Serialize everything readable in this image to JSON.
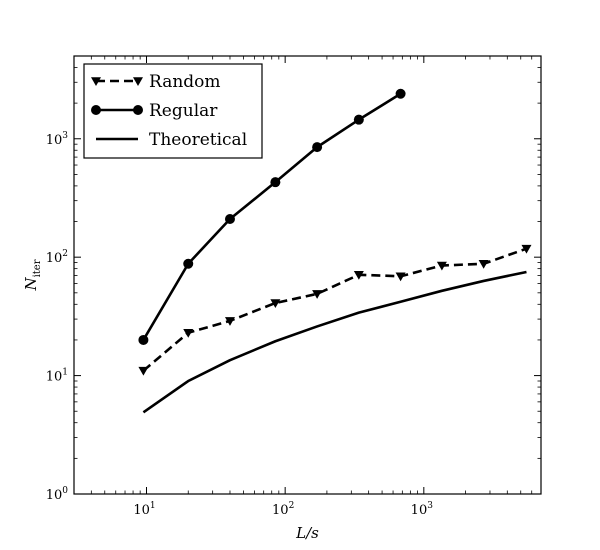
{
  "chart_data": {
    "type": "line",
    "xscale": "log",
    "yscale": "log",
    "xlim": [
      3,
      7000
    ],
    "ylim": [
      1,
      5000
    ],
    "xlabel": "L/s",
    "ylabel_main": "N",
    "ylabel_sub": "iter",
    "grid": false,
    "legend_position": "top-left",
    "x_ticks": [
      {
        "value": 10,
        "base": "10",
        "exp": "1"
      },
      {
        "value": 100,
        "base": "10",
        "exp": "2"
      },
      {
        "value": 1000,
        "base": "10",
        "exp": "3"
      }
    ],
    "y_ticks": [
      {
        "value": 1,
        "base": "10",
        "exp": "0"
      },
      {
        "value": 10,
        "base": "10",
        "exp": "1"
      },
      {
        "value": 100,
        "base": "10",
        "exp": "2"
      },
      {
        "value": 1000,
        "base": "10",
        "exp": "3"
      }
    ],
    "series": [
      {
        "name": "Random",
        "style": "dashed",
        "marker": "triangle-down",
        "color": "#000000",
        "points": [
          [
            9.5,
            11
          ],
          [
            20,
            23
          ],
          [
            40,
            29
          ],
          [
            85,
            41
          ],
          [
            170,
            49
          ],
          [
            340,
            71
          ],
          [
            680,
            69
          ],
          [
            1350,
            85
          ],
          [
            2700,
            88
          ],
          [
            5500,
            118
          ]
        ]
      },
      {
        "name": "Regular",
        "style": "solid",
        "marker": "circle",
        "color": "#000000",
        "points": [
          [
            9.5,
            20
          ],
          [
            20,
            88
          ],
          [
            40,
            210
          ],
          [
            85,
            430
          ],
          [
            170,
            850
          ],
          [
            340,
            1450
          ],
          [
            680,
            2400
          ]
        ]
      },
      {
        "name": "Theoretical",
        "style": "solid",
        "marker": "none",
        "color": "#000000",
        "points": [
          [
            9.5,
            4.9
          ],
          [
            20,
            9
          ],
          [
            40,
            13.5
          ],
          [
            85,
            19.5
          ],
          [
            170,
            26
          ],
          [
            340,
            34
          ],
          [
            680,
            42
          ],
          [
            1350,
            52
          ],
          [
            2700,
            63
          ],
          [
            5500,
            75
          ]
        ]
      }
    ]
  }
}
